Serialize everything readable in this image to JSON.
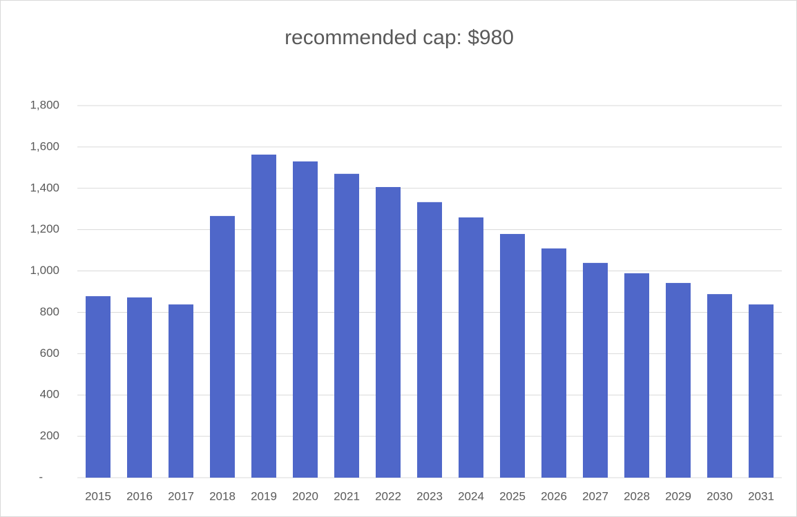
{
  "chart_data": {
    "type": "bar",
    "title": "recommended cap: $980",
    "categories": [
      "2015",
      "2016",
      "2017",
      "2018",
      "2019",
      "2020",
      "2021",
      "2022",
      "2023",
      "2024",
      "2025",
      "2026",
      "2027",
      "2028",
      "2029",
      "2030",
      "2031"
    ],
    "values": [
      878,
      872,
      838,
      1266,
      1563,
      1530,
      1470,
      1406,
      1333,
      1259,
      1179,
      1109,
      1039,
      989,
      942,
      888,
      838
    ],
    "color": "#4f67c9",
    "ylim": [
      0,
      1800
    ],
    "yticks": [
      {
        "value": 0,
        "label": "-"
      },
      200,
      400,
      600,
      800,
      {
        "value": 1000,
        "label": "1,000"
      },
      {
        "value": 1200,
        "label": "1,200"
      },
      {
        "value": 1400,
        "label": "1,400"
      },
      {
        "value": 1600,
        "label": "1,600"
      },
      {
        "value": 1800,
        "label": "1,800"
      }
    ],
    "grid": true
  }
}
